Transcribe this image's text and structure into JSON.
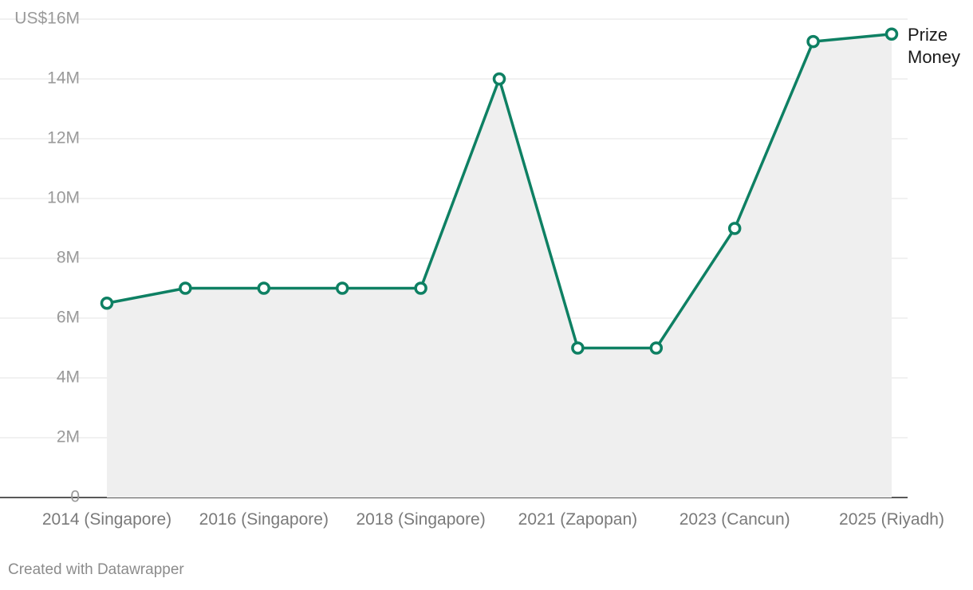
{
  "chart_data": {
    "type": "line",
    "title": "",
    "xlabel": "",
    "ylabel": "",
    "ylim": [
      0,
      16000000
    ],
    "y_ticks": [
      {
        "value": 0,
        "label": "0"
      },
      {
        "value": 2000000,
        "label": "2M"
      },
      {
        "value": 4000000,
        "label": "4M"
      },
      {
        "value": 6000000,
        "label": "6M"
      },
      {
        "value": 8000000,
        "label": "8M"
      },
      {
        "value": 10000000,
        "label": "10M"
      },
      {
        "value": 12000000,
        "label": "12M"
      },
      {
        "value": 14000000,
        "label": "14M"
      },
      {
        "value": 16000000,
        "label": "US$16M"
      }
    ],
    "x": [
      2014,
      2015,
      2016,
      2017,
      2018,
      2019,
      2021,
      2022,
      2023,
      2024,
      2025
    ],
    "x_tick_labels": [
      {
        "index": 0,
        "label": "2014 (Singapore)"
      },
      {
        "index": 2,
        "label": "2016 (Singapore)"
      },
      {
        "index": 4,
        "label": "2018 (Singapore)"
      },
      {
        "index": 6,
        "label": "2021 (Zapopan)"
      },
      {
        "index": 8,
        "label": "2023 (Cancun)"
      },
      {
        "index": 10,
        "label": "2025 (Riyadh)"
      }
    ],
    "series": [
      {
        "name": "Prize Money",
        "name_lines": [
          "Prize",
          "Money"
        ],
        "color": "#0e8063",
        "values": [
          6500000,
          7000000,
          7000000,
          7000000,
          7000000,
          14000000,
          5000000,
          5000000,
          9000000,
          15250000,
          15500000
        ]
      }
    ],
    "area_fill": "#efefef",
    "grid": true,
    "legend": "end-of-line label"
  },
  "footer": {
    "credit": "Created with Datawrapper"
  }
}
